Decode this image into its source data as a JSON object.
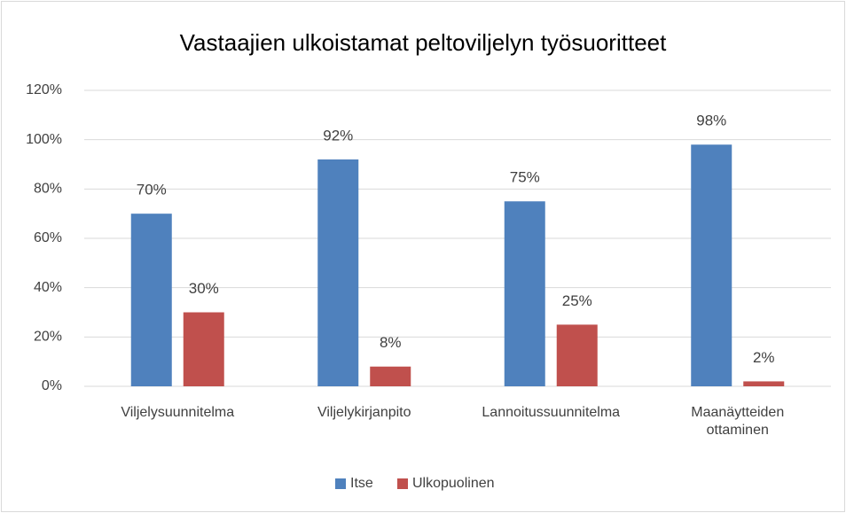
{
  "chart_data": {
    "type": "bar",
    "title": "Vastaajien ulkoistamat peltoviljelyn työsuoritteet",
    "categories": [
      "Viljelysuunnitelma",
      "Viljelykirjanpito",
      "Lannoitussuunnitelma",
      "Maanäytteiden ottaminen"
    ],
    "series": [
      {
        "name": "Itse",
        "color": "#4f81bd",
        "values": [
          70,
          92,
          75,
          98
        ],
        "value_labels": [
          "70%",
          "92%",
          "75%",
          "98%"
        ]
      },
      {
        "name": "Ulkopuolinen",
        "color": "#c0504d",
        "values": [
          30,
          8,
          25,
          2
        ],
        "value_labels": [
          "30%",
          "8%",
          "25%",
          "2%"
        ]
      }
    ],
    "ylim": [
      0,
      120
    ],
    "yticks": [
      {
        "value": 0,
        "label": "0%"
      },
      {
        "value": 20,
        "label": "20%"
      },
      {
        "value": 40,
        "label": "40%"
      },
      {
        "value": 60,
        "label": "60%"
      },
      {
        "value": 80,
        "label": "80%"
      },
      {
        "value": 100,
        "label": "100%"
      },
      {
        "value": 120,
        "label": "120%"
      }
    ],
    "grid": true,
    "legend": "bottom"
  }
}
